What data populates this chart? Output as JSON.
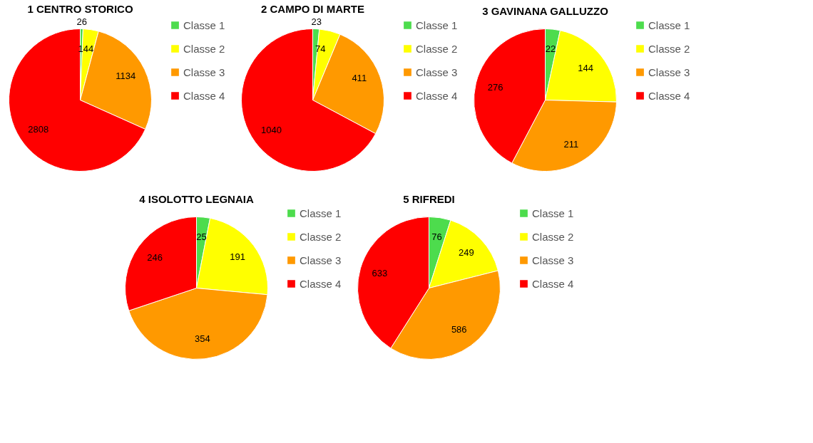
{
  "chart_data": [
    {
      "type": "pie",
      "title": "1 CENTRO STORICO",
      "categories": [
        "Classe 1",
        "Classe 2",
        "Classe 3",
        "Classe 4"
      ],
      "values": [
        26,
        144,
        1134,
        2808
      ],
      "colors": [
        "#4ddc4d",
        "#ffff00",
        "#ff9900",
        "#ff0000"
      ],
      "data_labels": true,
      "legend": "right"
    },
    {
      "type": "pie",
      "title": "2 CAMPO DI MARTE",
      "categories": [
        "Classe 1",
        "Classe 2",
        "Classe 3",
        "Classe 4"
      ],
      "values": [
        23,
        74,
        411,
        1040
      ],
      "colors": [
        "#4ddc4d",
        "#ffff00",
        "#ff9900",
        "#ff0000"
      ],
      "data_labels": true,
      "legend": "right"
    },
    {
      "type": "pie",
      "title": "3 GAVINANA GALLUZZO",
      "categories": [
        "Classe 1",
        "Classe 2",
        "Classe 3",
        "Classe 4"
      ],
      "values": [
        22,
        144,
        211,
        276
      ],
      "colors": [
        "#4ddc4d",
        "#ffff00",
        "#ff9900",
        "#ff0000"
      ],
      "data_labels": true,
      "legend": "right"
    },
    {
      "type": "pie",
      "title": "4 ISOLOTTO LEGNAIA",
      "categories": [
        "Classe 1",
        "Classe 2",
        "Classe 3",
        "Classe 4"
      ],
      "values": [
        25,
        191,
        354,
        246
      ],
      "colors": [
        "#4ddc4d",
        "#ffff00",
        "#ff9900",
        "#ff0000"
      ],
      "data_labels": true,
      "legend": "right"
    },
    {
      "type": "pie",
      "title": "5 RIFREDI",
      "categories": [
        "Classe 1",
        "Classe 2",
        "Classe 3",
        "Classe 4"
      ],
      "values": [
        76,
        249,
        586,
        633
      ],
      "colors": [
        "#4ddc4d",
        "#ffff00",
        "#ff9900",
        "#ff0000"
      ],
      "data_labels": true,
      "legend": "right"
    }
  ]
}
